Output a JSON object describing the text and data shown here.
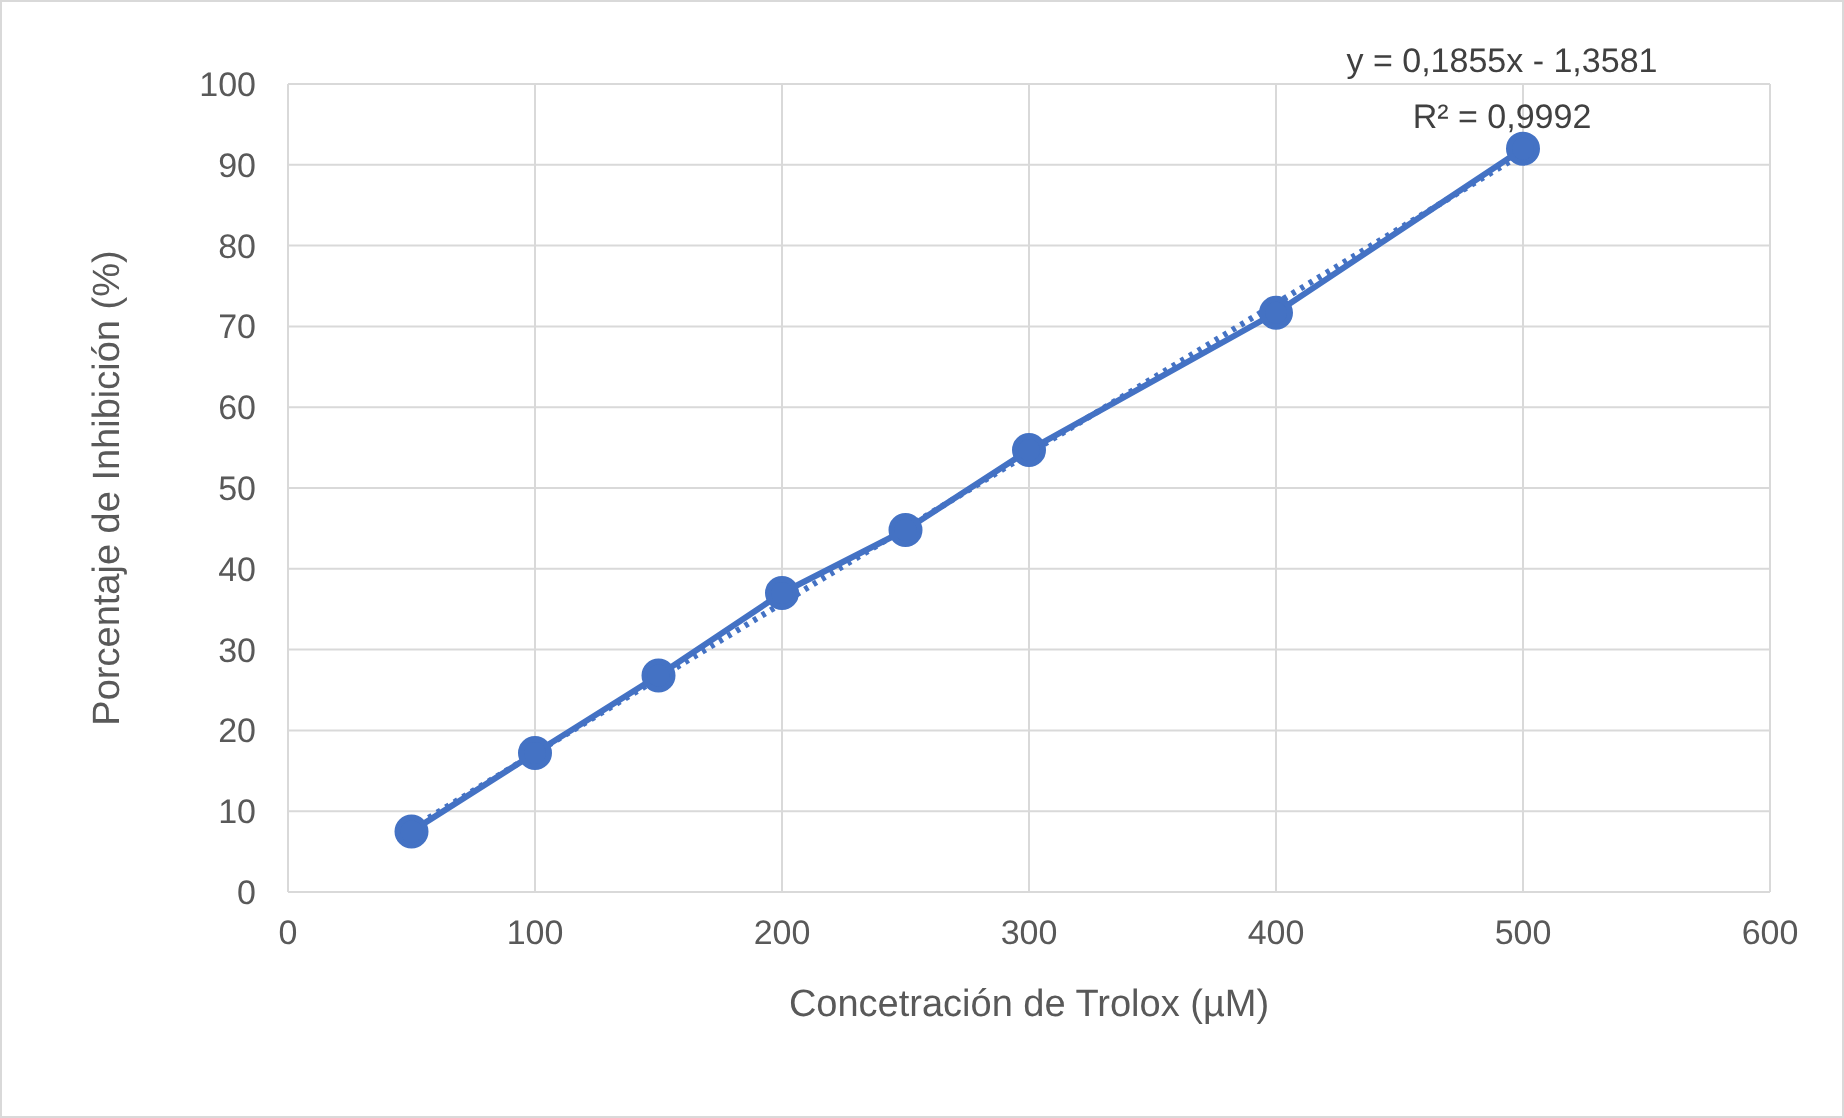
{
  "chart_data": {
    "type": "line",
    "xlabel": "Concetración de Trolox (µM)",
    "ylabel": "Porcentaje de Inhibición (%)",
    "x": [
      50,
      100,
      150,
      200,
      250,
      300,
      400,
      500
    ],
    "series": [
      {
        "color": "#4472c4",
        "values": [
          7.5,
          17.2,
          26.8,
          37,
          44.8,
          54.7,
          71.7,
          92
        ],
        "marker": "circle",
        "line_style": "solid"
      },
      {
        "color": "#4472c4",
        "x": [
          50,
          500
        ],
        "values": [
          7.9,
          91.4
        ],
        "marker": "none",
        "line_style": "dotted"
      }
    ],
    "xlim": [
      0,
      600
    ],
    "xticks": [
      0,
      100,
      200,
      300,
      400,
      500,
      600
    ],
    "ylim": [
      0,
      100
    ],
    "yticks": [
      0,
      10,
      20,
      30,
      40,
      50,
      60,
      70,
      80,
      90,
      100
    ],
    "grid": true,
    "annotations": [
      "y = 0,1855x - 1,3581",
      "R² = 0,9992"
    ]
  }
}
